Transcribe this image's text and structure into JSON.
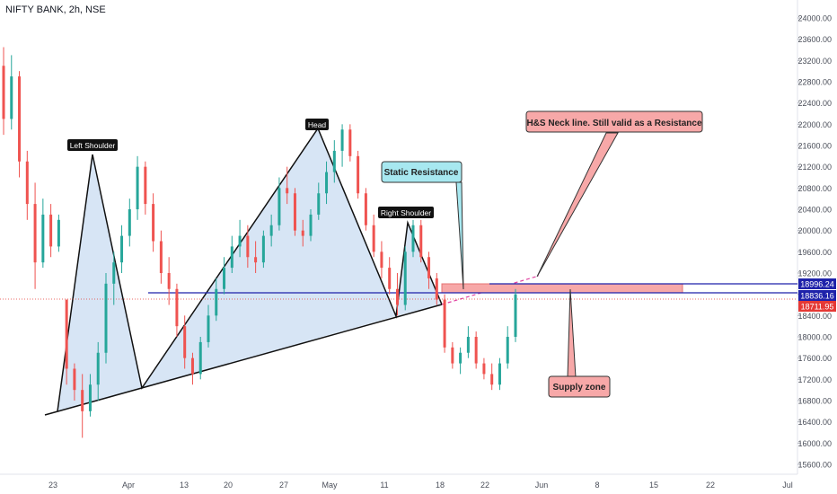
{
  "header": {
    "title": "NIFTY BANK, 2h, NSE"
  },
  "chart_data": {
    "type": "candlestick",
    "symbol": "NIFTY BANK",
    "interval": "2h",
    "exchange": "NSE",
    "ylim": [
      15400,
      24400
    ],
    "y_ticks": [
      "24000.00",
      "23600.00",
      "23200.00",
      "22800.00",
      "22400.00",
      "22000.00",
      "21600.00",
      "21200.00",
      "20800.00",
      "20400.00",
      "20000.00",
      "19600.00",
      "19200.00",
      "18800.00",
      "18400.00",
      "18000.00",
      "17600.00",
      "17200.00",
      "16800.00",
      "16400.00",
      "16000.00",
      "15600.00"
    ],
    "x_ticks": [
      "23",
      "Apr",
      "13",
      "20",
      "27",
      "May",
      "11",
      "18",
      "22",
      "Jun",
      "8",
      "15",
      "22",
      "Jul"
    ],
    "price_tags": [
      {
        "value": 18996.24,
        "label": "18996.24",
        "color": "#1e22aa"
      },
      {
        "value": 18836.16,
        "label": "18836.16",
        "color": "#1e22aa"
      },
      {
        "value": 18711.95,
        "label": "18711.95",
        "color": "#e53935"
      }
    ],
    "pattern_labels": [
      "Left Shoulder",
      "Head",
      "Right Shoulder"
    ],
    "callouts": [
      {
        "text": "H&S Neck line. Still valid as a Resistance",
        "fill": "#f7a8a8"
      },
      {
        "text": "Static Resistance",
        "fill": "#a7e8f0"
      },
      {
        "text": "Supply zone",
        "fill": "#f7a8a8"
      }
    ],
    "candles": [
      {
        "o": 23100,
        "h": 23450,
        "l": 21800,
        "c": 22100
      },
      {
        "o": 22100,
        "h": 23300,
        "l": 21900,
        "c": 22900
      },
      {
        "o": 22900,
        "h": 23000,
        "l": 21000,
        "c": 21300
      },
      {
        "o": 21300,
        "h": 21500,
        "l": 20200,
        "c": 20500
      },
      {
        "o": 20500,
        "h": 20900,
        "l": 18900,
        "c": 19400
      },
      {
        "o": 19400,
        "h": 20600,
        "l": 19300,
        "c": 20300
      },
      {
        "o": 20300,
        "h": 20500,
        "l": 19500,
        "c": 19700
      },
      {
        "o": 19700,
        "h": 20300,
        "l": 19600,
        "c": 20200
      },
      {
        "o": 18700,
        "h": 18700,
        "l": 17100,
        "c": 17400
      },
      {
        "o": 17400,
        "h": 17500,
        "l": 16800,
        "c": 17000
      },
      {
        "o": 17000,
        "h": 17300,
        "l": 16100,
        "c": 16600
      },
      {
        "o": 16600,
        "h": 17300,
        "l": 16500,
        "c": 17100
      },
      {
        "o": 17100,
        "h": 17900,
        "l": 16800,
        "c": 17700
      },
      {
        "o": 17700,
        "h": 19200,
        "l": 17500,
        "c": 19000
      },
      {
        "o": 19000,
        "h": 19600,
        "l": 18600,
        "c": 19400
      },
      {
        "o": 19400,
        "h": 20100,
        "l": 19200,
        "c": 19900
      },
      {
        "o": 19900,
        "h": 20600,
        "l": 19700,
        "c": 20400
      },
      {
        "o": 20400,
        "h": 21400,
        "l": 20200,
        "c": 21200
      },
      {
        "o": 21200,
        "h": 21300,
        "l": 20300,
        "c": 20500
      },
      {
        "o": 20500,
        "h": 20700,
        "l": 19600,
        "c": 19800
      },
      {
        "o": 19800,
        "h": 20000,
        "l": 19000,
        "c": 19200
      },
      {
        "o": 19200,
        "h": 19500,
        "l": 18600,
        "c": 18900
      },
      {
        "o": 18900,
        "h": 19000,
        "l": 18000,
        "c": 18200
      },
      {
        "o": 18200,
        "h": 18400,
        "l": 17400,
        "c": 17600
      },
      {
        "o": 17600,
        "h": 17700,
        "l": 17100,
        "c": 17300
      },
      {
        "o": 17300,
        "h": 18000,
        "l": 17200,
        "c": 17900
      },
      {
        "o": 17900,
        "h": 18600,
        "l": 17800,
        "c": 18400
      },
      {
        "o": 18400,
        "h": 19100,
        "l": 18300,
        "c": 18900
      },
      {
        "o": 18900,
        "h": 19500,
        "l": 18800,
        "c": 19300
      },
      {
        "o": 19300,
        "h": 19900,
        "l": 19200,
        "c": 19700
      },
      {
        "o": 19700,
        "h": 20200,
        "l": 19500,
        "c": 19900
      },
      {
        "o": 19900,
        "h": 20100,
        "l": 19300,
        "c": 19500
      },
      {
        "o": 19500,
        "h": 19800,
        "l": 19200,
        "c": 19400
      },
      {
        "o": 19400,
        "h": 20000,
        "l": 19300,
        "c": 19900
      },
      {
        "o": 19900,
        "h": 20300,
        "l": 19700,
        "c": 20100
      },
      {
        "o": 20100,
        "h": 21000,
        "l": 20000,
        "c": 20800
      },
      {
        "o": 20800,
        "h": 21200,
        "l": 20500,
        "c": 20700
      },
      {
        "o": 20700,
        "h": 20800,
        "l": 19900,
        "c": 20000
      },
      {
        "o": 20000,
        "h": 20200,
        "l": 19700,
        "c": 19900
      },
      {
        "o": 19900,
        "h": 20400,
        "l": 19800,
        "c": 20300
      },
      {
        "o": 20300,
        "h": 20900,
        "l": 20200,
        "c": 20700
      },
      {
        "o": 20700,
        "h": 21300,
        "l": 20500,
        "c": 21100
      },
      {
        "o": 21100,
        "h": 21700,
        "l": 20900,
        "c": 21500
      },
      {
        "o": 21500,
        "h": 22000,
        "l": 21200,
        "c": 21900
      },
      {
        "o": 21900,
        "h": 22000,
        "l": 21300,
        "c": 21400
      },
      {
        "o": 21400,
        "h": 21500,
        "l": 20600,
        "c": 20700
      },
      {
        "o": 20700,
        "h": 20800,
        "l": 20000,
        "c": 20100
      },
      {
        "o": 20100,
        "h": 20300,
        "l": 19500,
        "c": 19600
      },
      {
        "o": 19600,
        "h": 19800,
        "l": 19100,
        "c": 19300
      },
      {
        "o": 19300,
        "h": 19500,
        "l": 18800,
        "c": 18900
      },
      {
        "o": 18900,
        "h": 19200,
        "l": 18400,
        "c": 18600
      },
      {
        "o": 18600,
        "h": 19700,
        "l": 18500,
        "c": 19600
      },
      {
        "o": 19600,
        "h": 20200,
        "l": 19500,
        "c": 20100
      },
      {
        "o": 20100,
        "h": 20200,
        "l": 19400,
        "c": 19500
      },
      {
        "o": 19500,
        "h": 19600,
        "l": 18900,
        "c": 19100
      },
      {
        "o": 19100,
        "h": 19200,
        "l": 18600,
        "c": 18700
      },
      {
        "o": 18700,
        "h": 18800,
        "l": 17700,
        "c": 17800
      },
      {
        "o": 17800,
        "h": 17900,
        "l": 17400,
        "c": 17500
      },
      {
        "o": 17500,
        "h": 17800,
        "l": 17300,
        "c": 17700
      },
      {
        "o": 17700,
        "h": 18200,
        "l": 17600,
        "c": 18000
      },
      {
        "o": 18000,
        "h": 18100,
        "l": 17400,
        "c": 17500
      },
      {
        "o": 17500,
        "h": 17600,
        "l": 17200,
        "c": 17300
      },
      {
        "o": 17300,
        "h": 17500,
        "l": 17000,
        "c": 17100
      },
      {
        "o": 17100,
        "h": 17600,
        "l": 17000,
        "c": 17500
      },
      {
        "o": 17500,
        "h": 18200,
        "l": 17400,
        "c": 18000
      },
      {
        "o": 18000,
        "h": 18900,
        "l": 17900,
        "c": 18800
      }
    ]
  }
}
